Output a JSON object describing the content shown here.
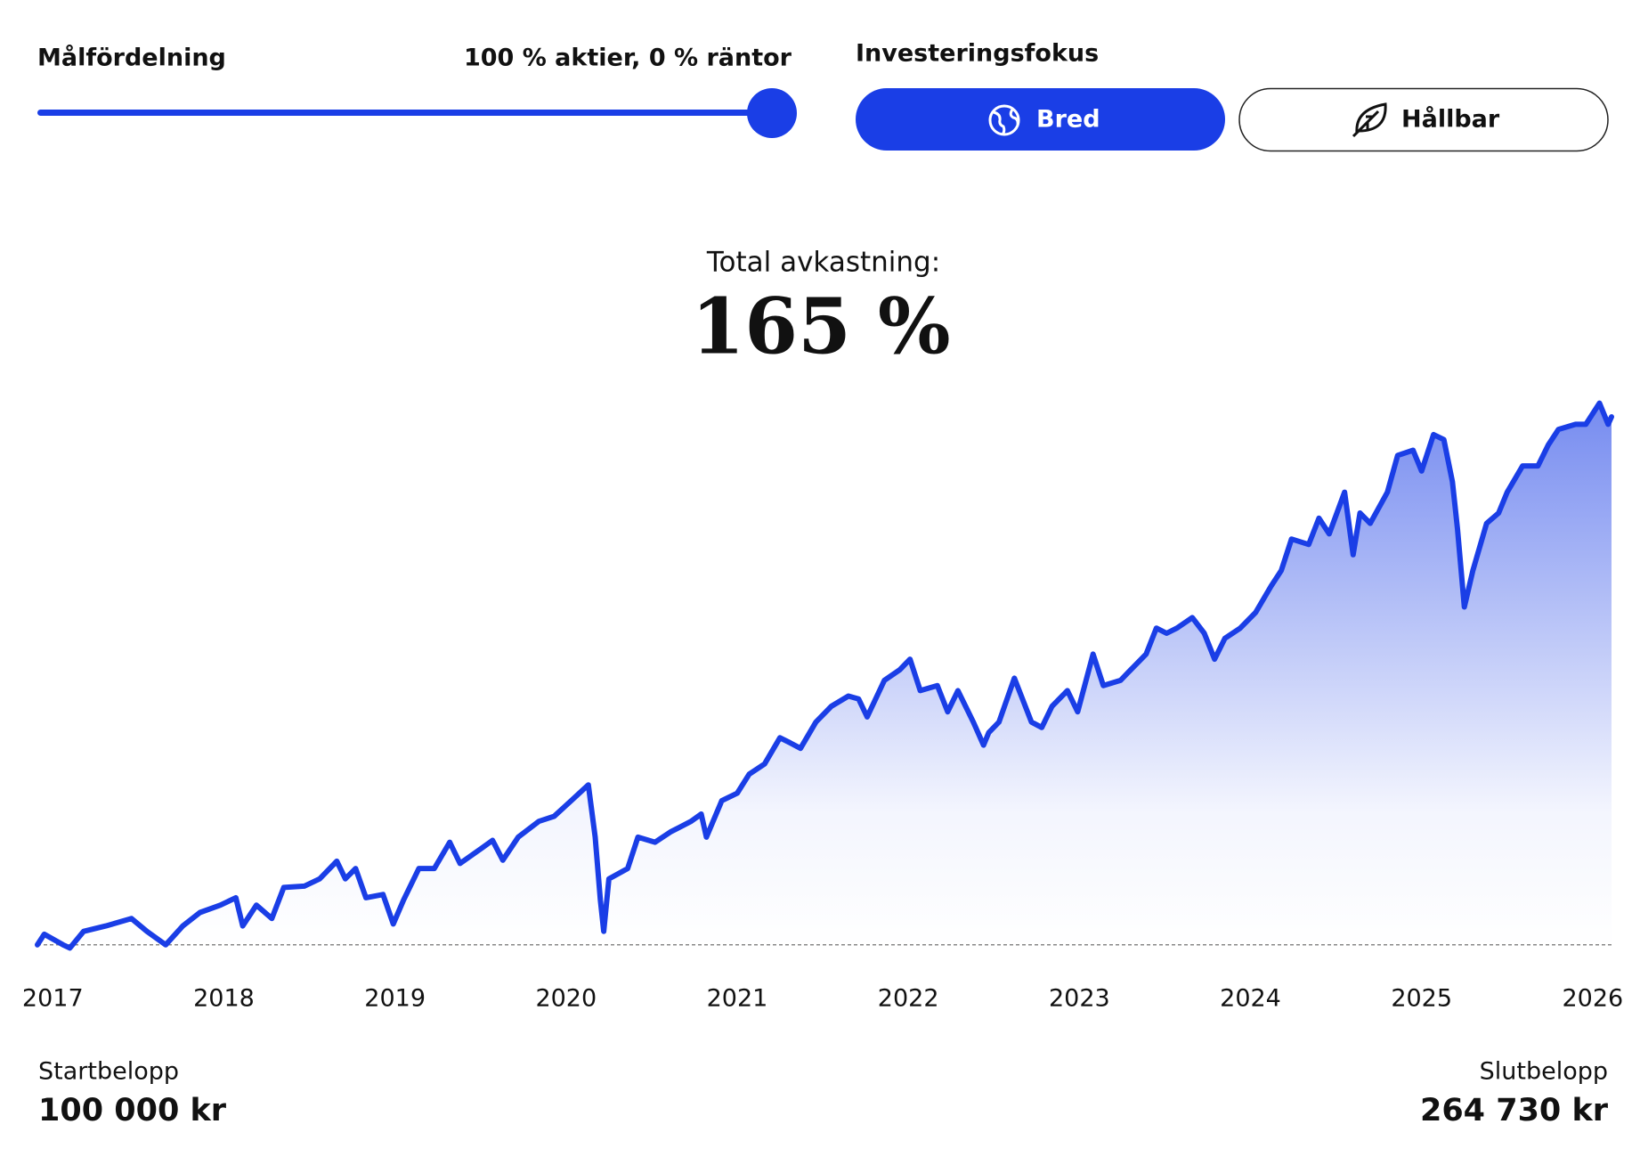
{
  "controls": {
    "allocation_label": "Målfördelning",
    "allocation_value": "100 % aktier, 0 % räntor",
    "focus_label": "Investeringsfokus",
    "focus_options": [
      "Bred",
      "Hållbar"
    ]
  },
  "summary": {
    "label": "Total avkastning:",
    "value": "165 %"
  },
  "footer": {
    "start_label": "Startbelopp",
    "start_value": "100 000 kr",
    "end_label": "Slutbelopp",
    "end_value": "264 730 kr"
  },
  "chart_data": {
    "type": "line",
    "color": "#1a3ee6",
    "x": [
      2016.91,
      2016.95,
      2017.06,
      2017.1,
      2017.18,
      2017.31,
      2017.46,
      2017.55,
      2017.66,
      2017.76,
      2017.86,
      2017.98,
      2018.07,
      2018.11,
      2018.19,
      2018.28,
      2018.35,
      2018.47,
      2018.56,
      2018.66,
      2018.71,
      2018.77,
      2018.83,
      2018.93,
      2018.99,
      2019.05,
      2019.14,
      2019.23,
      2019.32,
      2019.38,
      2019.51,
      2019.57,
      2019.63,
      2019.72,
      2019.84,
      2019.93,
      2020.03,
      2020.13,
      2020.17,
      2020.2,
      2020.22,
      2020.25,
      2020.36,
      2020.42,
      2020.52,
      2020.61,
      2020.73,
      2020.79,
      2020.82,
      2020.91,
      2021.0,
      2021.07,
      2021.16,
      2021.25,
      2021.31,
      2021.37,
      2021.46,
      2021.55,
      2021.65,
      2021.71,
      2021.76,
      2021.86,
      2021.95,
      2022.01,
      2022.07,
      2022.17,
      2022.23,
      2022.29,
      2022.38,
      2022.44,
      2022.47,
      2022.53,
      2022.62,
      2022.72,
      2022.78,
      2022.84,
      2022.93,
      2022.99,
      2023.08,
      2023.14,
      2023.24,
      2023.3,
      2023.39,
      2023.45,
      2023.51,
      2023.57,
      2023.66,
      2023.73,
      2023.79,
      2023.85,
      2023.94,
      2024.03,
      2024.12,
      2024.18,
      2024.24,
      2024.34,
      2024.4,
      2024.46,
      2024.55,
      2024.6,
      2024.64,
      2024.7,
      2024.8,
      2024.86,
      2024.95,
      2025.0,
      2025.07,
      2025.13,
      2025.18,
      2025.21,
      2025.25,
      2025.3,
      2025.38,
      2025.45,
      2025.5,
      2025.59,
      2025.68,
      2025.74,
      2025.8,
      2025.9,
      2025.96,
      2026.04,
      2026.09,
      2026.11
    ],
    "values": [
      100000,
      103300,
      100000,
      99000,
      104200,
      105900,
      108200,
      104200,
      100000,
      105900,
      110100,
      112400,
      114700,
      105900,
      112400,
      108200,
      117900,
      118300,
      120600,
      126100,
      120600,
      123800,
      114700,
      115700,
      106500,
      114000,
      123800,
      123800,
      132000,
      125400,
      130300,
      132600,
      126400,
      133600,
      138500,
      140100,
      145000,
      149900,
      133600,
      114000,
      104200,
      120600,
      123800,
      133600,
      132000,
      135200,
      138500,
      140800,
      133600,
      145000,
      147300,
      153200,
      156400,
      164600,
      163000,
      161300,
      169500,
      174400,
      177600,
      176700,
      171100,
      182500,
      185800,
      189100,
      179300,
      180900,
      172700,
      179300,
      169500,
      162300,
      166200,
      169500,
      183200,
      169500,
      167800,
      174400,
      179300,
      172700,
      190700,
      180900,
      182500,
      185800,
      190700,
      198800,
      197200,
      198800,
      202100,
      197200,
      189100,
      195600,
      198800,
      203700,
      211900,
      216800,
      226600,
      224900,
      233100,
      228200,
      241200,
      221700,
      234700,
      231500,
      241200,
      252700,
      254300,
      247800,
      259200,
      257600,
      244500,
      229800,
      205400,
      216800,
      231500,
      234700,
      241200,
      249400,
      249400,
      255900,
      260800,
      262400,
      262400,
      269000,
      262400,
      264730
    ],
    "xlim": [
      2016.91,
      2026.11
    ],
    "xticks": [
      2017,
      2018,
      2019,
      2020,
      2021,
      2022,
      2023,
      2024,
      2025,
      2026
    ],
    "ylim": [
      98000,
      270000
    ]
  }
}
